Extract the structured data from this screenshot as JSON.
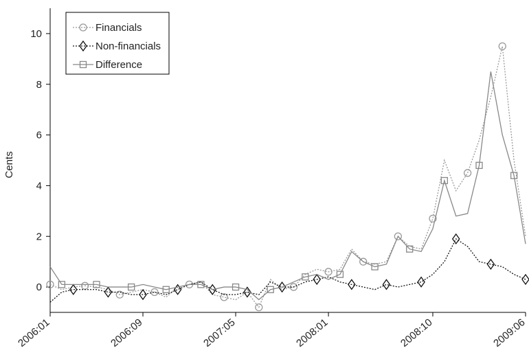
{
  "chart_data": {
    "type": "line",
    "y_label": "Cents",
    "categories": [
      "2006:01",
      null,
      null,
      null,
      null,
      null,
      null,
      null,
      "2006:09",
      null,
      null,
      null,
      null,
      null,
      null,
      null,
      "2007:05",
      null,
      null,
      null,
      null,
      null,
      null,
      null,
      "2008:01",
      null,
      null,
      null,
      null,
      null,
      null,
      null,
      null,
      "2008:10",
      null,
      null,
      null,
      null,
      null,
      null,
      null,
      "2009:06"
    ],
    "ylim": [
      -1,
      11
    ],
    "yticks": [
      0,
      2,
      4,
      6,
      8,
      10
    ],
    "legend": "top-left",
    "series": [
      {
        "name": "Financials",
        "color": "#999999",
        "line_style": "dotted",
        "marker": "circle",
        "values": [
          0.1,
          -0.1,
          0,
          0.05,
          0,
          -0.1,
          -0.3,
          -0.2,
          -0.1,
          -0.2,
          -0.4,
          0,
          0.1,
          0.2,
          -0.3,
          -0.4,
          -0.5,
          -0.2,
          -0.8,
          0.3,
          -0.1,
          0,
          0.5,
          0.7,
          0.6,
          0.7,
          1.5,
          1.0,
          0.9,
          1.0,
          2.0,
          1.6,
          1.5,
          2.7,
          5.0,
          3.8,
          4.5,
          5.8,
          7.5,
          9.5,
          5.0,
          2.0
        ]
      },
      {
        "name": "Non-financials",
        "color": "#111111",
        "line_style": "dotted",
        "marker": "diamond",
        "values": [
          -0.6,
          -0.2,
          -0.1,
          -0.1,
          -0.1,
          -0.2,
          -0.2,
          -0.3,
          -0.3,
          -0.2,
          -0.3,
          -0.1,
          0.1,
          0.2,
          -0.1,
          -0.3,
          -0.3,
          -0.2,
          -0.3,
          0.2,
          0,
          0,
          0.2,
          0.3,
          0.4,
          0.2,
          0.1,
          0,
          -0.1,
          0.1,
          0,
          0.1,
          0.2,
          0.5,
          1.0,
          1.9,
          1.6,
          1.0,
          0.9,
          0.8,
          0.5,
          0.3
        ]
      },
      {
        "name": "Difference",
        "color": "#888888",
        "line_style": "solid",
        "marker": "square",
        "values": [
          0.8,
          0.1,
          0.1,
          0.1,
          0.1,
          0,
          0,
          0,
          0.1,
          0,
          -0.1,
          0,
          0.1,
          0.1,
          -0.1,
          0,
          0,
          -0.1,
          -0.5,
          -0.1,
          0,
          0.2,
          0.4,
          0.5,
          0.3,
          0.5,
          1.4,
          1.0,
          0.8,
          0.9,
          2.0,
          1.5,
          1.4,
          2.3,
          4.2,
          2.8,
          2.9,
          4.8,
          8.5,
          6.0,
          4.4,
          1.7
        ]
      }
    ]
  }
}
